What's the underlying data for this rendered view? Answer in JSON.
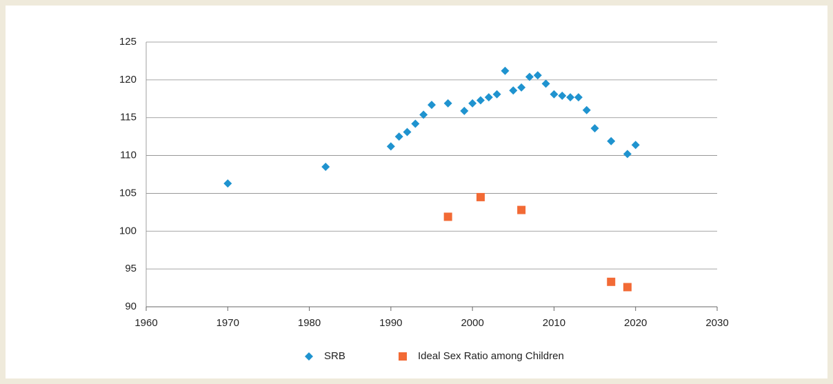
{
  "chart_data": {
    "type": "scatter",
    "series": [
      {
        "name": "SRB",
        "color": "#1f93cf",
        "marker": "diamond",
        "x": [
          1970,
          1982,
          1990,
          1991,
          1992,
          1993,
          1994,
          1995,
          1997,
          1999,
          2000,
          2001,
          2002,
          2003,
          2004,
          2005,
          2006,
          2007,
          2008,
          2009,
          2010,
          2011,
          2012,
          2013,
          2014,
          2015,
          2017,
          2019,
          2020
        ],
        "values": [
          106.3,
          108.5,
          111.2,
          112.5,
          113.1,
          114.2,
          115.4,
          116.7,
          116.9,
          115.9,
          116.9,
          117.3,
          117.7,
          118.1,
          121.2,
          118.6,
          119.0,
          120.4,
          120.6,
          119.5,
          118.1,
          117.9,
          117.7,
          117.7,
          116.0,
          113.6,
          111.9,
          110.2,
          111.4
        ]
      },
      {
        "name": "Ideal Sex Ratio among Children",
        "color": "#f26a35",
        "marker": "square",
        "x": [
          1997,
          2001,
          2006,
          2017,
          2019
        ],
        "values": [
          101.9,
          104.5,
          102.8,
          93.3,
          92.6
        ]
      }
    ],
    "xlim": [
      1960,
      2030
    ],
    "xticks": [
      1960,
      1970,
      1980,
      1990,
      2000,
      2010,
      2020,
      2030
    ],
    "ylim": [
      90,
      125
    ],
    "yticks": [
      90,
      95,
      100,
      105,
      110,
      115,
      120,
      125
    ],
    "grid": true,
    "legend": "bottom"
  }
}
